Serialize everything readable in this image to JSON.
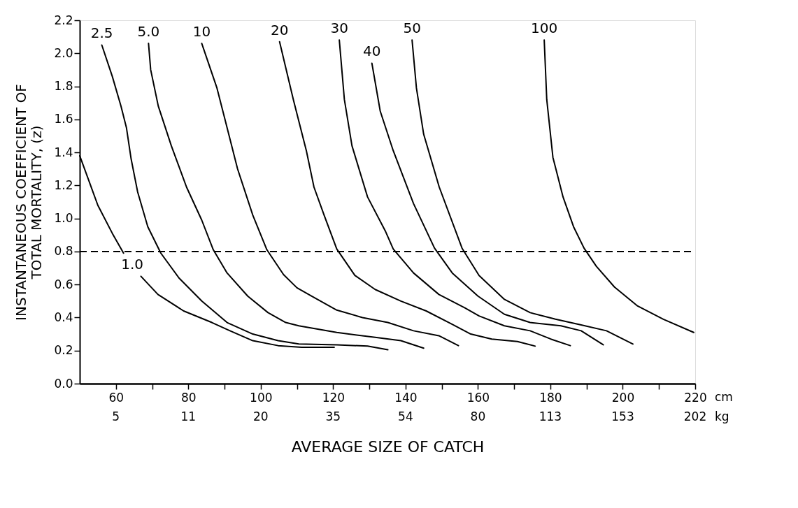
{
  "chart_data": {
    "type": "line",
    "xlabel": "AVERAGE SIZE OF CATCH",
    "ylabel": "INSTANTANEOUS COEFFICIENT OF\nTOTAL MORTALITY, (z)",
    "xlim": [
      50,
      220
    ],
    "ylim": [
      0,
      2.2
    ],
    "xticks": [
      60,
      {
        "value": 70,
        "label": null
      },
      80,
      {
        "value": 90,
        "label": null
      },
      100,
      {
        "value": 110,
        "label": null
      },
      120,
      {
        "value": 130,
        "label": null
      },
      140,
      {
        "value": 150,
        "label": null
      },
      160,
      {
        "value": 170,
        "label": null
      },
      180,
      {
        "value": 190,
        "label": null
      },
      200,
      {
        "value": 210,
        "label": null
      },
      220
    ],
    "yticks": [
      {
        "value": 0,
        "label": "0.0"
      },
      {
        "value": 0.2,
        "label": "0.2"
      },
      {
        "value": 0.4,
        "label": "0.4"
      },
      {
        "value": 0.6,
        "label": "0.6"
      },
      {
        "value": 0.8,
        "label": "0.8"
      },
      {
        "value": 1.0,
        "label": "1.0"
      },
      {
        "value": 1.2,
        "label": "1.2"
      },
      {
        "value": 1.4,
        "label": "1.4"
      },
      {
        "value": 1.6,
        "label": "1.6"
      },
      {
        "value": 1.8,
        "label": "1.8"
      },
      {
        "value": 2.0,
        "label": "2.0"
      },
      {
        "value": 2.2,
        "label": "2.2"
      }
    ],
    "grid": false,
    "legend": false,
    "marker": "none",
    "line_style": "solid",
    "annotations": [
      "cm",
      "kg",
      "5",
      "11",
      "20",
      "35",
      "54",
      "80",
      "113",
      "153",
      "202"
    ],
    "ref_lines": [
      {
        "axis": "y",
        "value": 0.8,
        "line_style": "dashed",
        "color": "#000000"
      }
    ],
    "series": [
      {
        "name": "1.0",
        "color": "#000000",
        "x": [
          50,
          53,
          55,
          59,
          62.1,
          64.5,
          66.9,
          71.6,
          78.7,
          86.5,
          91.5,
          97.8,
          104.8,
          111.3,
          120.3
        ],
        "values": [
          1.38,
          1.2,
          1.08,
          0.91,
          0.79,
          null,
          0.65,
          0.54,
          0.44,
          0.37,
          0.32,
          0.26,
          0.23,
          0.22,
          0.22
        ]
      },
      {
        "name": "2.5",
        "color": "#000000",
        "x": [
          56.1,
          59,
          61.4,
          62.9,
          64.2,
          66,
          68.8,
          72.4,
          77.4,
          83.7,
          90.7,
          97.8,
          104.8,
          110.5,
          121,
          129.5,
          135.1
        ],
        "values": [
          2.05,
          1.86,
          1.68,
          1.55,
          1.36,
          1.16,
          0.95,
          0.79,
          0.64,
          0.5,
          0.37,
          0.3,
          0.26,
          0.24,
          0.235,
          0.227,
          0.205
        ]
      },
      {
        "name": "5.0",
        "color": "#000000",
        "x": [
          69,
          69.6,
          71.7,
          75.3,
          79.5,
          83.7,
          86.9,
          90.7,
          96.4,
          102,
          106.9,
          110.5,
          121,
          131.6,
          138.7,
          145
        ],
        "values": [
          2.06,
          1.9,
          1.68,
          1.44,
          1.19,
          0.99,
          0.81,
          0.67,
          0.53,
          0.43,
          0.37,
          0.35,
          0.31,
          0.28,
          0.26,
          0.215
        ]
      },
      {
        "name": "10",
        "color": "#000000",
        "x": [
          83.7,
          87.9,
          90,
          93.6,
          97.8,
          101.7,
          106.3,
          110,
          114,
          121,
          128.1,
          135.1,
          142.2,
          149.2,
          154.6
        ],
        "values": [
          2.06,
          1.79,
          1.61,
          1.3,
          1.02,
          0.81,
          0.66,
          0.58,
          0.53,
          0.445,
          0.4,
          0.37,
          0.32,
          0.29,
          0.23
        ]
      },
      {
        "name": "20",
        "color": "#000000",
        "x": [
          105.2,
          109,
          112.6,
          114.7,
          117.5,
          121,
          126,
          131.6,
          138.7,
          145.7,
          152.8,
          158,
          163.8,
          170.9,
          175.8
        ],
        "values": [
          2.07,
          1.72,
          1.41,
          1.19,
          1.02,
          0.815,
          0.655,
          0.57,
          0.5,
          0.44,
          0.36,
          0.3,
          0.27,
          0.255,
          0.227
        ]
      },
      {
        "name": "30",
        "color": "#000000",
        "x": [
          121.7,
          123.1,
          125.2,
          129.5,
          134.5,
          136.6,
          142.2,
          149.2,
          156.3,
          160.3,
          167.3,
          174.4,
          180.1,
          185.5
        ],
        "values": [
          2.08,
          1.72,
          1.44,
          1.13,
          0.92,
          0.815,
          0.67,
          0.54,
          0.46,
          0.41,
          0.35,
          0.32,
          0.27,
          0.23
        ]
      },
      {
        "name": "40",
        "color": "#000000",
        "x": [
          130.7,
          133,
          136.6,
          142.2,
          148,
          152.9,
          160,
          167.3,
          174.4,
          182.9,
          188.5,
          194.6
        ],
        "values": [
          1.94,
          1.65,
          1.41,
          1.09,
          0.82,
          0.67,
          0.53,
          0.42,
          0.37,
          0.35,
          0.32,
          0.235
        ]
      },
      {
        "name": "50",
        "color": "#000000",
        "x": [
          141.8,
          143,
          145,
          149.3,
          155.6,
          160.3,
          167.3,
          174.4,
          181.4,
          188.5,
          195.5,
          202.8
        ],
        "values": [
          2.08,
          1.79,
          1.51,
          1.19,
          0.82,
          0.655,
          0.51,
          0.43,
          0.39,
          0.355,
          0.32,
          0.24
        ]
      },
      {
        "name": "100",
        "color": "#000000",
        "x": [
          178.3,
          179,
          180.7,
          183.5,
          186.4,
          189.3,
          192.7,
          197.7,
          204.1,
          211.2,
          219.6
        ],
        "values": [
          2.08,
          1.72,
          1.37,
          1.13,
          0.95,
          0.82,
          0.71,
          0.585,
          0.47,
          0.39,
          0.31
        ]
      }
    ]
  }
}
